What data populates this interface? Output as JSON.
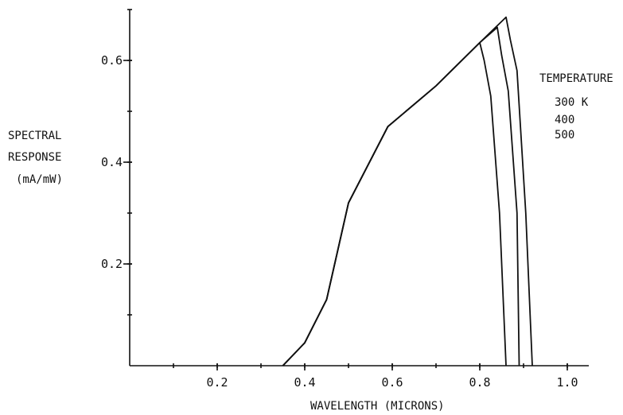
{
  "chart_data": {
    "type": "line",
    "xlabel": "WAVELENGTH (MICRONS)",
    "ylabel_lines": [
      "SPECTRAL",
      "RESPONSE",
      "(mA/mW)"
    ],
    "xlim": [
      0.0,
      1.05
    ],
    "ylim": [
      0.0,
      0.7
    ],
    "x_ticks": [
      0.2,
      0.4,
      0.6,
      0.8,
      1.0
    ],
    "x_tick_labels": [
      "0.2",
      "0.4",
      "0.6",
      "0.8",
      "1.0"
    ],
    "y_ticks": [
      0.2,
      0.4,
      0.6
    ],
    "y_tick_labels": [
      "0.2",
      "0.4",
      "0.6"
    ],
    "grid": false,
    "legend": {
      "title": "TEMPERATURE",
      "entries": [
        "300 K",
        "400",
        "500"
      ],
      "placement": "right"
    },
    "series": [
      {
        "name": "300 K",
        "x": [
          0.35,
          0.4,
          0.45,
          0.5,
          0.59,
          0.7,
          0.8,
          0.81,
          0.825,
          0.845,
          0.86
        ],
        "y": [
          0.0,
          0.045,
          0.13,
          0.32,
          0.47,
          0.55,
          0.635,
          0.6,
          0.53,
          0.3,
          0.0
        ]
      },
      {
        "name": "400",
        "x": [
          0.35,
          0.4,
          0.45,
          0.5,
          0.59,
          0.7,
          0.8,
          0.84,
          0.85,
          0.865,
          0.885,
          0.89
        ],
        "y": [
          0.0,
          0.045,
          0.13,
          0.32,
          0.47,
          0.55,
          0.635,
          0.665,
          0.61,
          0.54,
          0.3,
          0.0
        ]
      },
      {
        "name": "500",
        "x": [
          0.35,
          0.4,
          0.45,
          0.5,
          0.59,
          0.7,
          0.8,
          0.86,
          0.87,
          0.885,
          0.905,
          0.92
        ],
        "y": [
          0.0,
          0.045,
          0.13,
          0.32,
          0.47,
          0.55,
          0.635,
          0.685,
          0.64,
          0.58,
          0.3,
          0.0
        ]
      }
    ]
  }
}
